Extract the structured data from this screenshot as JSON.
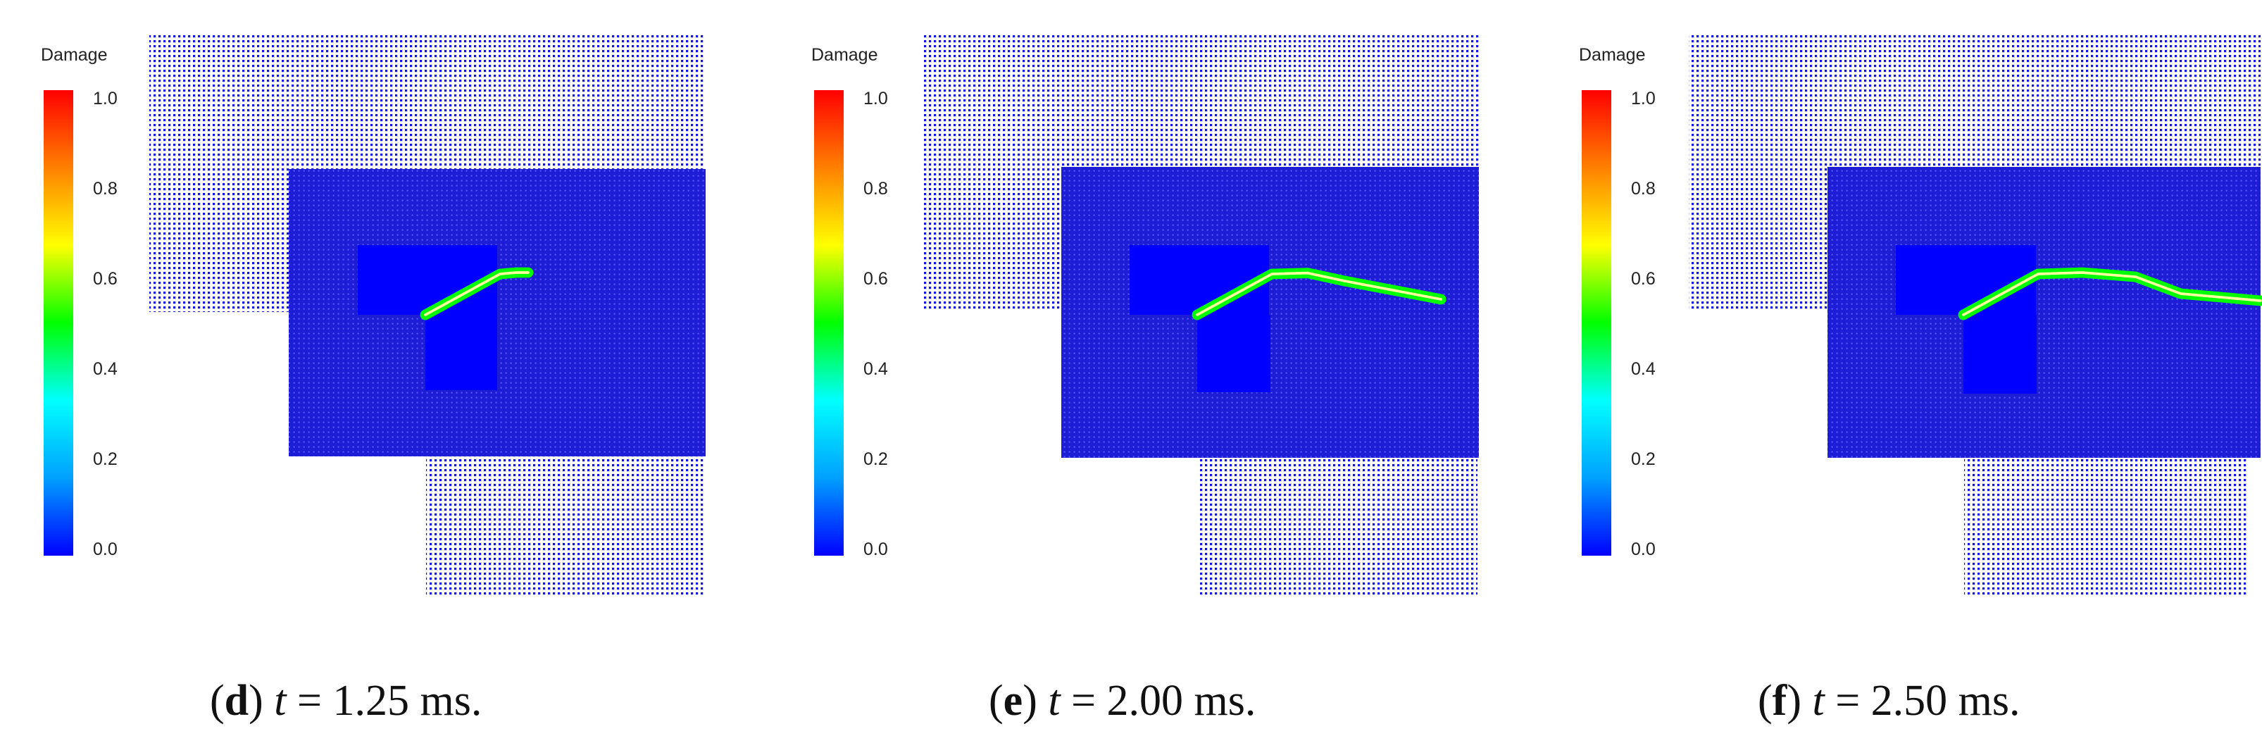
{
  "colorbar": {
    "title": "Damage",
    "ticks": [
      "1.0",
      "0.8",
      "0.6",
      "0.4",
      "0.2",
      "0.0"
    ],
    "stops": [
      "#0000ff",
      "#00a0ff",
      "#00ffff",
      "#00ff00",
      "#ffff00",
      "#ff8000",
      "#ff0000"
    ]
  },
  "colors": {
    "particle": "#0000e6",
    "block": "#0000ff",
    "crack_core": "#ffffa0",
    "crack_edge": "#00ff00"
  },
  "panels": [
    {
      "letter": "d",
      "time_value": "1.25",
      "crack": [
        [
          0.0,
          0.0
        ],
        [
          1.0,
          0.547
        ],
        [
          1.216,
          0.566
        ],
        [
          1.377,
          0.566
        ]
      ]
    },
    {
      "letter": "e",
      "time_value": "2.00",
      "crack": [
        [
          0.0,
          0.0
        ],
        [
          1.0,
          0.547
        ],
        [
          1.48,
          0.56
        ],
        [
          1.98,
          0.452
        ],
        [
          3.265,
          0.208
        ]
      ]
    },
    {
      "letter": "f",
      "time_value": "2.50",
      "crack": [
        [
          0.0,
          0.0
        ],
        [
          1.0,
          0.547
        ],
        [
          1.59,
          0.566
        ],
        [
          2.306,
          0.509
        ],
        [
          2.912,
          0.283
        ],
        [
          3.98,
          0.189
        ]
      ]
    }
  ],
  "caption": {
    "open": "(",
    "close": ")",
    "t_symbol": "t",
    "equals": "=",
    "unit": "ms."
  }
}
